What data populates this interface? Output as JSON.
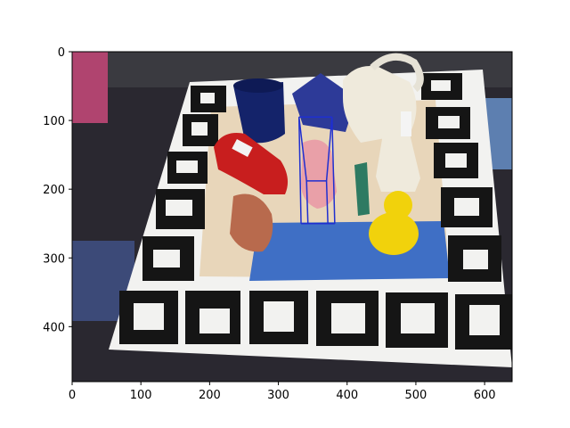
{
  "chart_data": {
    "type": "image",
    "title": "",
    "xlabel": "",
    "ylabel": "",
    "xlim": [
      0,
      640
    ],
    "ylim": [
      480,
      0
    ],
    "y_inverted": true,
    "grid": false,
    "x_ticks": [
      0,
      100,
      200,
      300,
      400,
      500,
      600
    ],
    "y_ticks": [
      0,
      100,
      200,
      300,
      400
    ],
    "image_content": "tabletop scene on a marker board with a blue mug, red toy car, white watering can, glue bottle, yellow rubber duck and a pink figure",
    "overlay": {
      "shape": "3d-bounding-box",
      "color": "#1f2fd0",
      "vertices": [
        [
          330,
          95
        ],
        [
          378,
          95
        ],
        [
          382,
          250
        ],
        [
          333,
          250
        ],
        [
          341,
          188
        ],
        [
          370,
          188
        ],
        [
          372,
          250
        ],
        [
          343,
          250
        ]
      ],
      "edges": [
        [
          0,
          1
        ],
        [
          1,
          2
        ],
        [
          2,
          3
        ],
        [
          3,
          0
        ],
        [
          4,
          5
        ],
        [
          5,
          6
        ],
        [
          6,
          7
        ],
        [
          7,
          4
        ],
        [
          0,
          4
        ],
        [
          1,
          5
        ],
        [
          2,
          6
        ],
        [
          3,
          7
        ]
      ]
    },
    "colors": {
      "table": "#2a2830",
      "board": "#f2f2f0",
      "marker": "#151515",
      "mug": "#14236a",
      "car": "#c81e1e",
      "duck": "#f1d20c",
      "box": "#2d3a98",
      "figure": "#e9a0a8",
      "bottle": "#efeadc"
    }
  }
}
